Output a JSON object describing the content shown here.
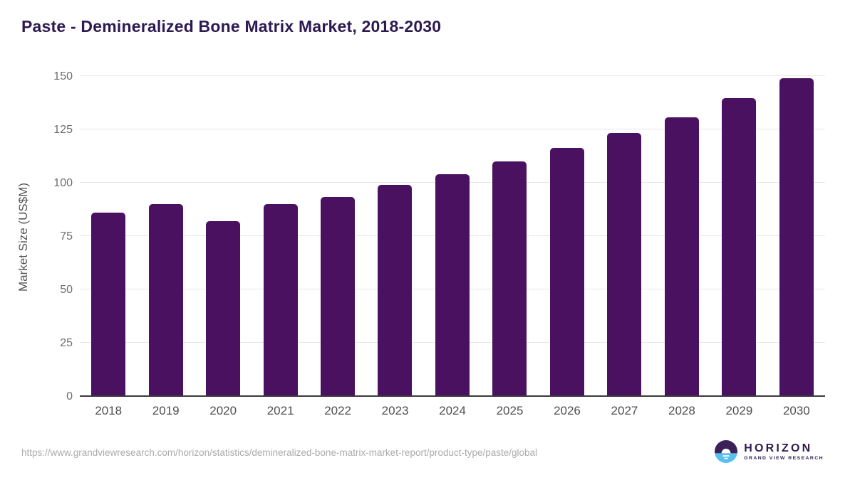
{
  "chart_data": {
    "type": "bar",
    "title": "Paste - Demineralized Bone Matrix Market, 2018-2030",
    "xlabel": "",
    "ylabel": "Market Size (US$M)",
    "categories": [
      "2018",
      "2019",
      "2020",
      "2021",
      "2022",
      "2023",
      "2024",
      "2025",
      "2026",
      "2027",
      "2028",
      "2029",
      "2030"
    ],
    "values": [
      86,
      90,
      82,
      90,
      93.5,
      99,
      104,
      110,
      116.5,
      123.5,
      131,
      140,
      149.5
    ],
    "ylim": [
      0,
      150
    ],
    "yticks": [
      0,
      25,
      50,
      75,
      100,
      125,
      150
    ],
    "grid": true,
    "legend": "none",
    "bar_color": "#4a1161"
  },
  "colors": {
    "title": "#2d1a52",
    "axis_line": "#3a3a3a",
    "gridline": "#e7e7e7",
    "tick_label": "#6e6e6e",
    "url_text": "#ababab",
    "logo_dark_purple": "#3a2258",
    "logo_light_blue": "#58c0ef"
  },
  "footer": {
    "source_url": "https://www.grandviewresearch.com/horizon/statistics/demineralized-bone-matrix-market-report/product-type/paste/global",
    "logo": {
      "title": "HORIZON",
      "subtitle": "GRAND VIEW RESEARCH"
    }
  }
}
